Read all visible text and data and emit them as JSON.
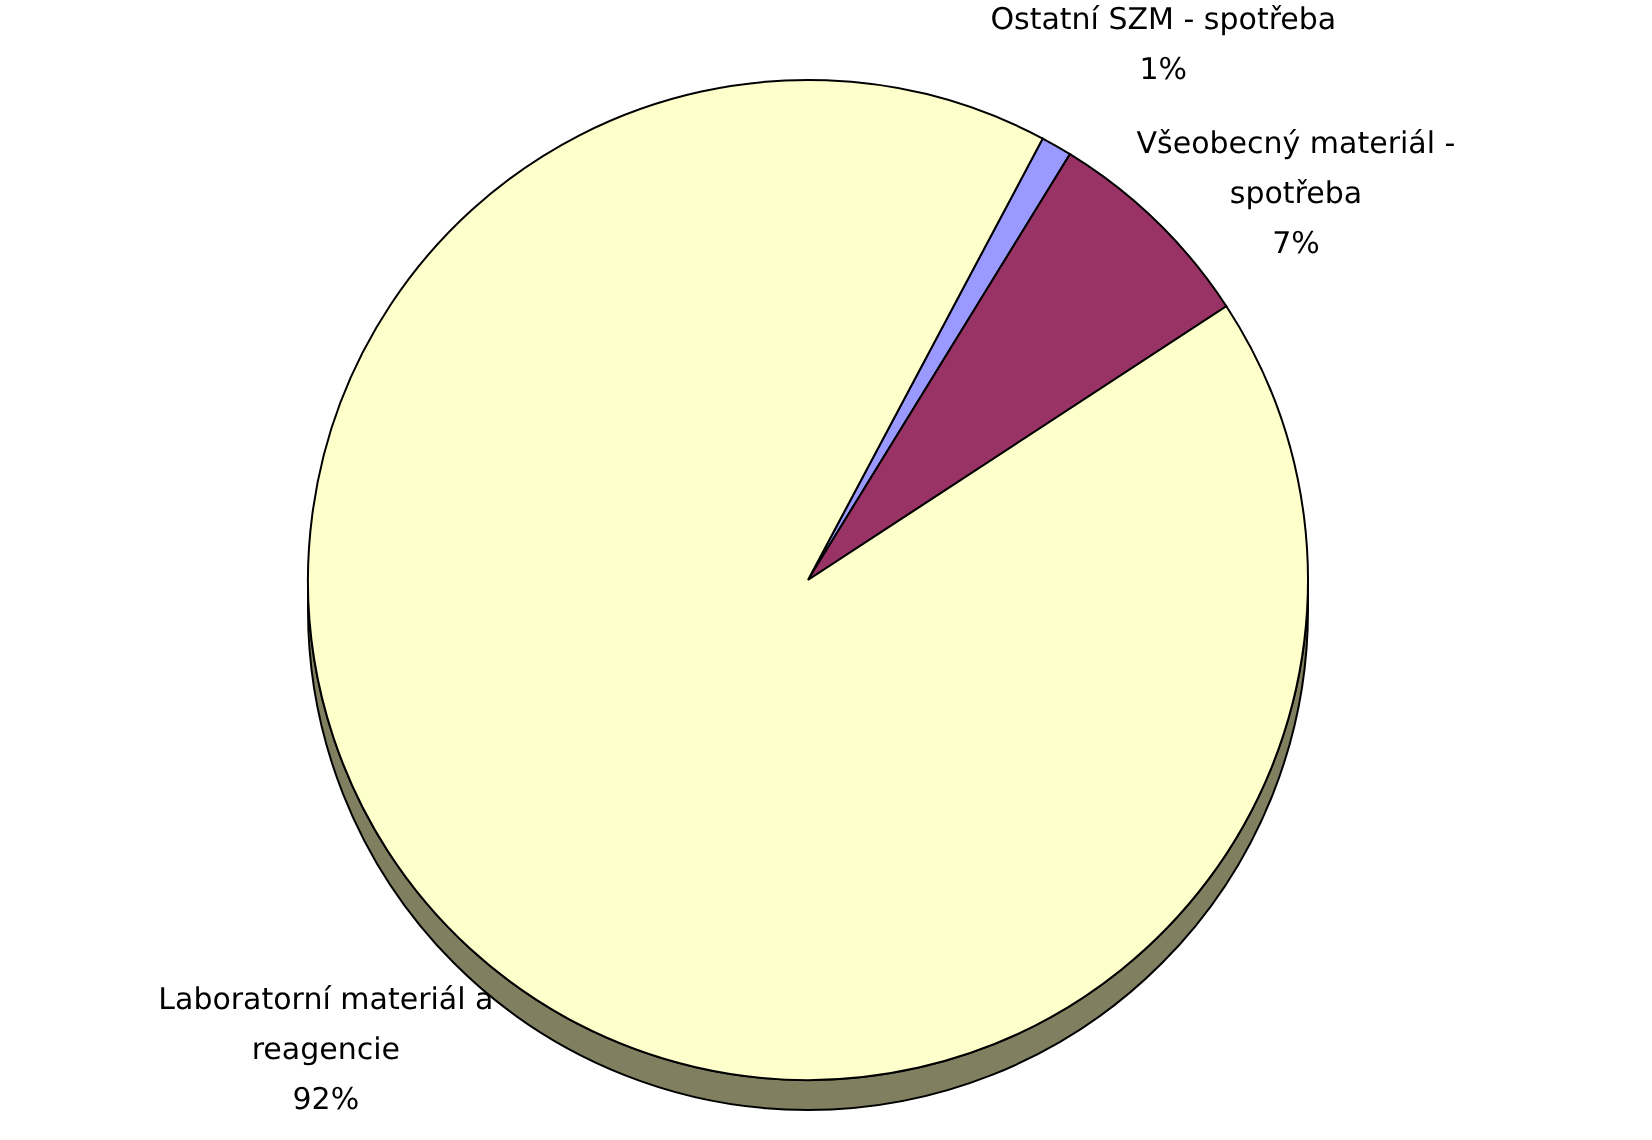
{
  "chart_data": {
    "type": "pie",
    "categories": [
      "Ostatní SZM - spotřeba",
      "Všeobecný materiál - spotřeba",
      "Laboratorní materiál a reagencie"
    ],
    "values": [
      1,
      7,
      92
    ],
    "colors": [
      "#9999ff",
      "#993366",
      "#ffffcc"
    ],
    "value_labels": [
      "1%",
      "7%",
      "92%"
    ]
  }
}
